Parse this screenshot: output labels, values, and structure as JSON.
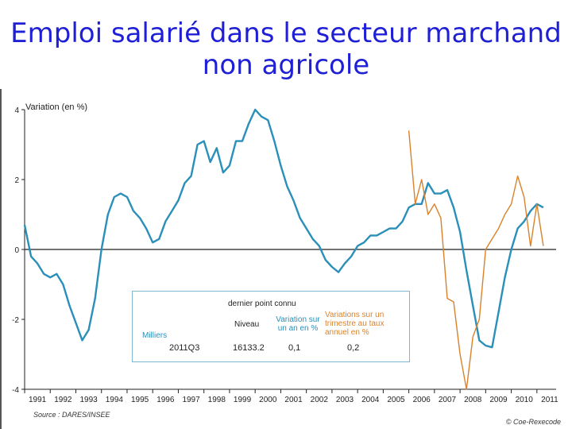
{
  "slide": {
    "title_line1": "Emploi salarié dans le secteur marchand",
    "title_line2": "non agricole"
  },
  "chart_data": {
    "type": "line",
    "ylabel": "Variation (en %)",
    "ylim": [
      -4,
      4
    ],
    "yticks": [
      -4,
      -2,
      0,
      2,
      4
    ],
    "xlim": [
      1991.0,
      2011.75
    ],
    "xtick_labels": [
      "1991",
      "1992",
      "1993",
      "1994",
      "1995",
      "1996",
      "1997",
      "1998",
      "1999",
      "2000",
      "2001",
      "2002",
      "2003",
      "2004",
      "2005",
      "2006",
      "2007",
      "2008",
      "2009",
      "2010",
      "2011"
    ],
    "grid": false,
    "series": [
      {
        "name": "Variation sur un an en %",
        "color": "#2a8fb9",
        "x": [
          1991.0,
          1991.25,
          1991.5,
          1991.75,
          1992.0,
          1992.25,
          1992.5,
          1992.75,
          1993.0,
          1993.25,
          1993.5,
          1993.75,
          1994.0,
          1994.25,
          1994.5,
          1994.75,
          1995.0,
          1995.25,
          1995.5,
          1995.75,
          1996.0,
          1996.25,
          1996.5,
          1996.75,
          1997.0,
          1997.25,
          1997.5,
          1997.75,
          1998.0,
          1998.25,
          1998.5,
          1998.75,
          1999.0,
          1999.25,
          1999.5,
          1999.75,
          2000.0,
          2000.25,
          2000.5,
          2000.75,
          2001.0,
          2001.25,
          2001.5,
          2001.75,
          2002.0,
          2002.25,
          2002.5,
          2002.75,
          2003.0,
          2003.25,
          2003.5,
          2003.75,
          2004.0,
          2004.25,
          2004.5,
          2004.75,
          2005.0,
          2005.25,
          2005.5,
          2005.75,
          2006.0,
          2006.25,
          2006.5,
          2006.75,
          2007.0,
          2007.25,
          2007.5,
          2007.75,
          2008.0,
          2008.25,
          2008.5,
          2008.75,
          2009.0,
          2009.25,
          2009.5,
          2009.75,
          2010.0,
          2010.25,
          2010.5,
          2010.75,
          2011.0,
          2011.25
        ],
        "values": [
          0.7,
          -0.2,
          -0.4,
          -0.7,
          -0.8,
          -0.7,
          -1.0,
          -1.6,
          -2.1,
          -2.6,
          -2.3,
          -1.4,
          0.0,
          1.0,
          1.5,
          1.6,
          1.5,
          1.1,
          0.9,
          0.6,
          0.2,
          0.3,
          0.8,
          1.1,
          1.4,
          1.9,
          2.1,
          3.0,
          3.1,
          2.5,
          2.9,
          2.2,
          2.4,
          3.1,
          3.1,
          3.6,
          4.0,
          3.8,
          3.7,
          3.1,
          2.4,
          1.8,
          1.4,
          0.9,
          0.6,
          0.3,
          0.1,
          -0.3,
          -0.5,
          -0.65,
          -0.4,
          -0.2,
          0.1,
          0.2,
          0.4,
          0.4,
          0.5,
          0.6,
          0.6,
          0.8,
          1.2,
          1.3,
          1.3,
          1.9,
          1.6,
          1.6,
          1.7,
          1.2,
          0.5,
          -0.6,
          -1.6,
          -2.6,
          -2.75,
          -2.8,
          -1.8,
          -0.8,
          0.0,
          0.6,
          0.8,
          1.1,
          1.3,
          1.2
        ]
      },
      {
        "name": "Variation sur trimestre au taux annuel en %",
        "color": "#d9822b",
        "x": [
          2006.0,
          2006.25,
          2006.5,
          2006.75,
          2007.0,
          2007.25,
          2007.5,
          2007.75,
          2008.0,
          2008.25,
          2008.5,
          2008.75,
          2009.0,
          2009.25,
          2009.5,
          2009.75,
          2010.0,
          2010.25,
          2010.5,
          2010.75,
          2011.0,
          2011.25
        ],
        "values": [
          3.4,
          1.3,
          2.0,
          1.0,
          1.3,
          0.9,
          -1.4,
          -1.5,
          -3.0,
          -4.0,
          -2.5,
          -2.0,
          0.0,
          0.3,
          0.6,
          1.0,
          1.3,
          2.1,
          1.5,
          0.1,
          1.3,
          0.1
        ]
      }
    ],
    "annotation": {
      "header": "dernier point connu",
      "col_niveau": "Niveau",
      "col_var1": "Variation sur\nun an en %",
      "col_var4": "Variations sur un\ntrimestre au taux\nannuel en %",
      "milliers": "Milliers",
      "date": "2011Q3",
      "level": "16133.2",
      "var1": "0,1",
      "var4": "0,2"
    },
    "source": "Source : DARES/INSEE",
    "credit": "© Coe-Rexecode"
  }
}
